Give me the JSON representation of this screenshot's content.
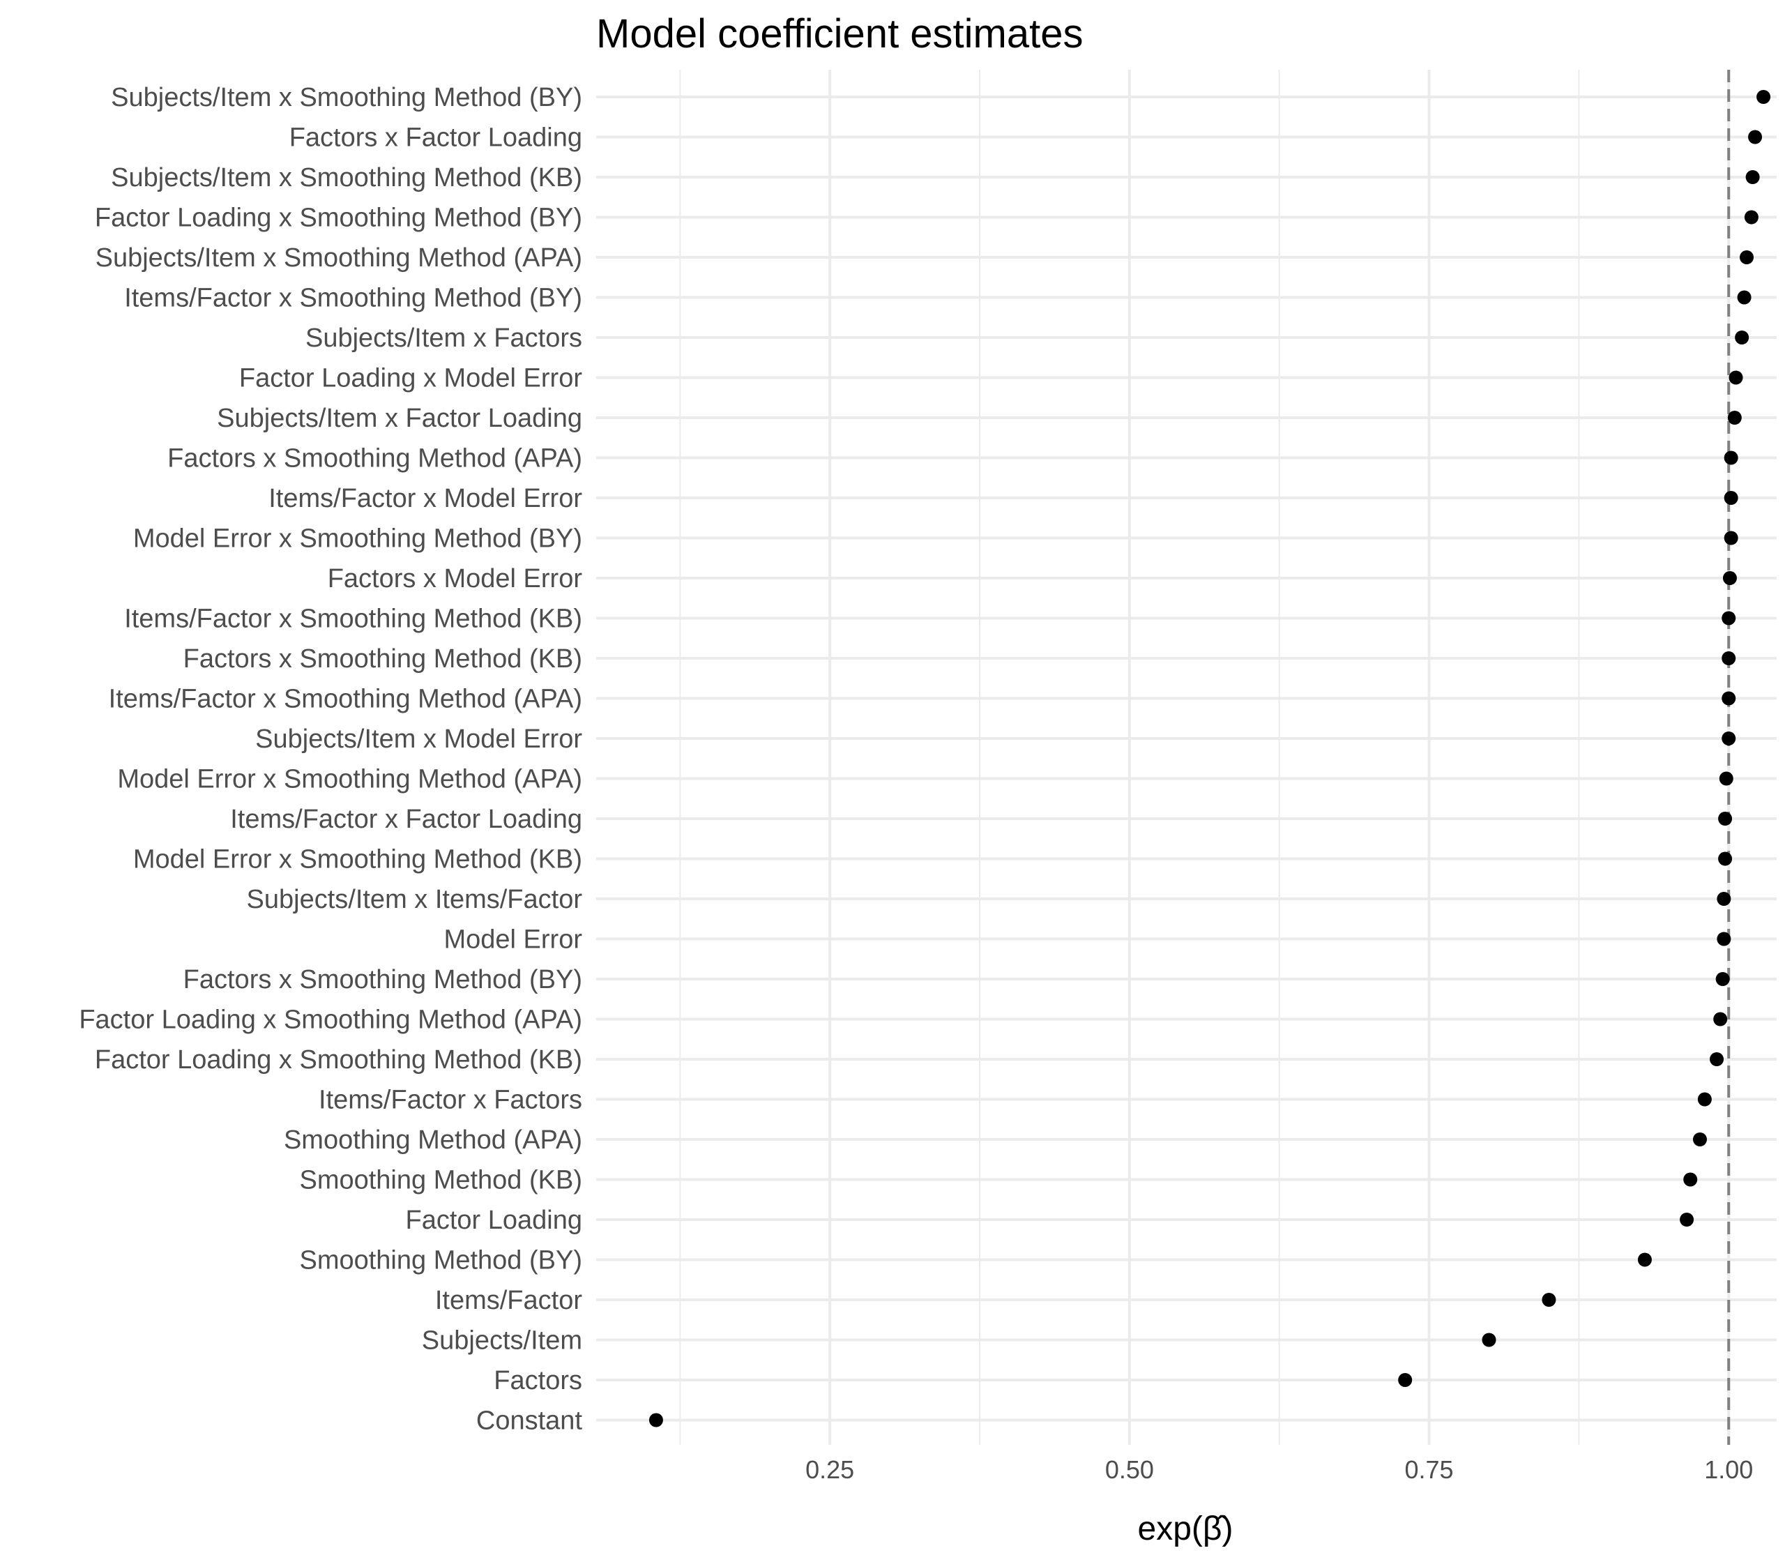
{
  "chart_data": {
    "type": "scatter",
    "title": "Model coefficient estimates",
    "xlabel": "exp(β̂)",
    "ylabel": "",
    "xlim": [
      0.055,
      1.04
    ],
    "x_ticks": [
      0.25,
      0.5,
      0.75,
      1.0
    ],
    "x_tick_labels": [
      "0.25",
      "0.50",
      "0.75",
      "1.00"
    ],
    "reference_line": {
      "x": 1.0,
      "style": "dashed",
      "color": "#808080"
    },
    "grid": true,
    "legend": "none",
    "point_color": "#000000",
    "categories": [
      "Subjects/Item x Smoothing Method (BY)",
      "Factors x Factor Loading",
      "Subjects/Item x Smoothing Method (KB)",
      "Factor Loading x Smoothing Method (BY)",
      "Subjects/Item x Smoothing Method (APA)",
      "Items/Factor x Smoothing Method (BY)",
      "Subjects/Item x Factors",
      "Factor Loading x Model Error",
      "Subjects/Item x Factor Loading",
      "Factors x Smoothing Method (APA)",
      "Items/Factor x Model Error",
      "Model Error x Smoothing Method (BY)",
      "Factors x Model Error",
      "Items/Factor x Smoothing Method (KB)",
      "Factors x Smoothing Method (KB)",
      "Items/Factor x Smoothing Method (APA)",
      "Subjects/Item x Model Error",
      "Model Error x Smoothing Method (APA)",
      "Items/Factor x Factor Loading",
      "Model Error x Smoothing Method (KB)",
      "Subjects/Item x Items/Factor",
      "Model Error",
      "Factors x Smoothing Method (BY)",
      "Factor Loading x Smoothing Method (APA)",
      "Factor Loading x Smoothing Method (KB)",
      "Items/Factor x Factors",
      "Smoothing Method (APA)",
      "Smoothing Method (KB)",
      "Factor Loading",
      "Smoothing Method (BY)",
      "Items/Factor",
      "Subjects/Item",
      "Factors",
      "Constant"
    ],
    "values": [
      1.029,
      1.022,
      1.02,
      1.019,
      1.015,
      1.013,
      1.011,
      1.006,
      1.005,
      1.002,
      1.002,
      1.002,
      1.001,
      1.0,
      1.0,
      1.0,
      1.0,
      0.998,
      0.997,
      0.997,
      0.996,
      0.996,
      0.995,
      0.993,
      0.99,
      0.98,
      0.976,
      0.968,
      0.965,
      0.93,
      0.85,
      0.8,
      0.73,
      0.105
    ]
  }
}
